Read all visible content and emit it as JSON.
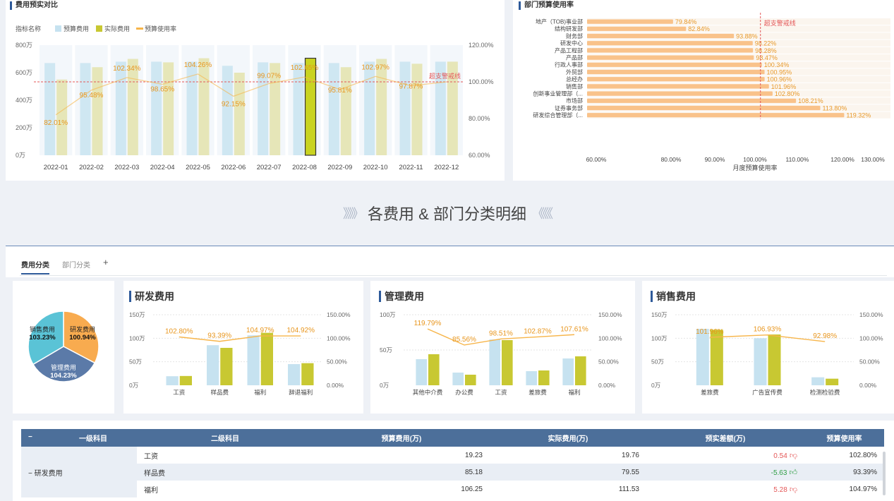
{
  "top_left": {
    "title": "费用预实对比",
    "legend": {
      "label": "指标名称",
      "items": [
        "预算费用",
        "实际费用",
        "预算使用率"
      ]
    },
    "warning_label": "超支警戒线",
    "chart_data": {
      "type": "bar",
      "categories": [
        "2022-01",
        "2022-02",
        "2022-03",
        "2022-04",
        "2022-05",
        "2022-06",
        "2022-07",
        "2022-08",
        "2022-09",
        "2022-10",
        "2022-11",
        "2022-12"
      ],
      "series": [
        {
          "name": "预算费用",
          "values": [
            670,
            670,
            680,
            680,
            680,
            650,
            675,
            670,
            670,
            680,
            680,
            680
          ]
        },
        {
          "name": "实际费用",
          "values": [
            550,
            640,
            700,
            675,
            705,
            600,
            670,
            705,
            640,
            700,
            665,
            680
          ]
        },
        {
          "name": "预算使用率",
          "axis": "right",
          "values": [
            82.01,
            95.48,
            102.34,
            98.65,
            104.26,
            92.15,
            99.07,
            102.65,
            95.81,
            102.97,
            97.87,
            100.0
          ]
        }
      ],
      "data_labels": [
        "82.01%",
        "95.48%",
        "102.34%",
        "98.65%",
        "104.26%",
        "92.15%",
        "99.07%",
        "102.65%",
        "95.81%",
        "102.97%",
        "97.87%",
        ""
      ],
      "y_ticks_left": [
        "800万",
        "600万",
        "400万",
        "200万",
        "0万"
      ],
      "y_ticks_right": [
        "120.00%",
        "100.00%",
        "80.00%",
        "60.00%"
      ],
      "ylim": [
        0,
        800
      ],
      "y2lim": [
        60,
        120
      ],
      "reference_line": 100,
      "highlighted_category": "2022-08"
    }
  },
  "top_right": {
    "title": "部门预算使用率",
    "warning_label": "超支警戒线",
    "chart_data": {
      "type": "bar",
      "orientation": "horizontal",
      "categories": [
        "地产（TOB)事业部",
        "结构研发部",
        "财务部",
        "研发中心",
        "产品工程部",
        "产品部",
        "行政人事部",
        "外贸部",
        "总经办",
        "销售部",
        "创新事业管理部（...",
        "市场部",
        "证券事务部",
        "研发综合管理部（..."
      ],
      "values": [
        79.84,
        82.84,
        93.88,
        98.22,
        98.28,
        98.47,
        100.34,
        100.95,
        100.96,
        101.96,
        102.8,
        108.21,
        113.8,
        119.32
      ],
      "value_labels": [
        "79.84%",
        "82.84%",
        "93.88%",
        "98.22%",
        "98.28%",
        "98.47%",
        "100.34%",
        "100.95%",
        "100.96%",
        "101.96%",
        "102.80%",
        "108.21%",
        "113.80%",
        "119.32%"
      ],
      "x_ticks": [
        "60.00%",
        "80.00%",
        "90.00%",
        "100.00%",
        "110.00%",
        "120.00%",
        "130.00%"
      ],
      "xlabel": "月度预算使用率",
      "reference_line": 100
    }
  },
  "banner": {
    "left_arrows": "》》》",
    "title": "各费用 & 部门分类明细",
    "right_arrows": "《《《"
  },
  "tabs": {
    "items": [
      "费用分类",
      "部门分类"
    ],
    "add": "+"
  },
  "pie": {
    "chart_data": {
      "type": "pie",
      "slices": [
        {
          "name": "研发费用",
          "value": 100.94,
          "label": "100.94%",
          "color": "#f8ab4f"
        },
        {
          "name": "管理费用",
          "value": 104.23,
          "label": "104.23%",
          "color": "#5b7aa8"
        },
        {
          "name": "销售费用",
          "value": 103.23,
          "label": "103.23%",
          "color": "#5ac3d6"
        }
      ]
    }
  },
  "mini_charts": [
    {
      "title": "研发费用",
      "chart_data": {
        "type": "bar",
        "categories": [
          "工资",
          "样品费",
          "福利",
          "辞退福利"
        ],
        "series": [
          {
            "name": "预算费用",
            "values": [
              19.23,
              85.18,
              106.25,
              45
            ]
          },
          {
            "name": "实际费用",
            "values": [
              19.76,
              79.55,
              111.53,
              47
            ]
          },
          {
            "name": "预算使用率",
            "axis": "right",
            "values": [
              102.8,
              93.39,
              104.97,
              104.92
            ]
          }
        ],
        "data_labels": [
          "102.80%",
          "93.39%",
          "104.97%",
          "104.92%"
        ],
        "y_ticks_left": [
          "150万",
          "100万",
          "50万",
          "0万"
        ],
        "y_ticks_right": [
          "150.00%",
          "100.00%",
          "50.00%",
          "0.00%"
        ],
        "ylim": [
          0,
          150
        ],
        "y2lim": [
          0,
          150
        ]
      }
    },
    {
      "title": "管理费用",
      "chart_data": {
        "type": "bar",
        "categories": [
          "其他中介费",
          "办公费",
          "工资",
          "差旅费",
          "福利"
        ],
        "series": [
          {
            "name": "预算费用",
            "values": [
              37,
              18,
              65,
              20,
              38
            ]
          },
          {
            "name": "实际费用",
            "values": [
              44,
              15,
              64,
              21,
              41
            ]
          },
          {
            "name": "预算使用率",
            "axis": "right",
            "values": [
              119.79,
              85.56,
              98.51,
              102.87,
              107.61
            ]
          }
        ],
        "data_labels": [
          "119.79%",
          "85.56%",
          "98.51%",
          "102.87%",
          "107.61%"
        ],
        "y_ticks_left": [
          "100万",
          "50万",
          "0万"
        ],
        "y_ticks_right": [
          "150.00%",
          "100.00%",
          "50.00%",
          "0.00%"
        ],
        "ylim": [
          0,
          100
        ],
        "y2lim": [
          0,
          150
        ]
      }
    },
    {
      "title": "销售费用",
      "chart_data": {
        "type": "bar",
        "categories": [
          "差旅费",
          "广告宣传费",
          "检测检验费"
        ],
        "series": [
          {
            "name": "预算费用",
            "values": [
              120,
              100,
              17
            ]
          },
          {
            "name": "实际费用",
            "values": [
              118,
              108,
              14
            ]
          },
          {
            "name": "预算使用率",
            "axis": "right",
            "values": [
              101.96,
              106.93,
              92.98
            ]
          }
        ],
        "data_labels": [
          "101.96%",
          "106.93%",
          "92.98%"
        ],
        "y_ticks_left": [
          "150万",
          "100万",
          "50万",
          "0万"
        ],
        "y_ticks_right": [
          "150.00%",
          "100.00%",
          "50.00%",
          "0.00%"
        ],
        "ylim": [
          0,
          150
        ],
        "y2lim": [
          0,
          150
        ]
      }
    }
  ],
  "table": {
    "headers": [
      "一级科目",
      "二级科目",
      "预算费用(万)",
      "实际费用(万)",
      "预实差额(万)",
      "预算使用率"
    ],
    "collapse_icon": "−",
    "group": {
      "label": "研发费用"
    },
    "rows": [
      {
        "sub": "工资",
        "budget": "19.23",
        "actual": "19.76",
        "diff": "0.54",
        "dir": "down",
        "rate": "102.80%"
      },
      {
        "sub": "样品费",
        "budget": "85.18",
        "actual": "79.55",
        "diff": "-5.63",
        "dir": "up",
        "rate": "93.39%"
      },
      {
        "sub": "福利",
        "budget": "106.25",
        "actual": "111.53",
        "diff": "5.28",
        "dir": "down",
        "rate": "104.97%"
      }
    ]
  },
  "colors": {
    "budget": "#c6e2f0",
    "actual": "#c8c832",
    "rate": "#f7b54a",
    "warning": "#e45757",
    "header": "#4c6f9a",
    "accent": "#2e5a9a"
  }
}
